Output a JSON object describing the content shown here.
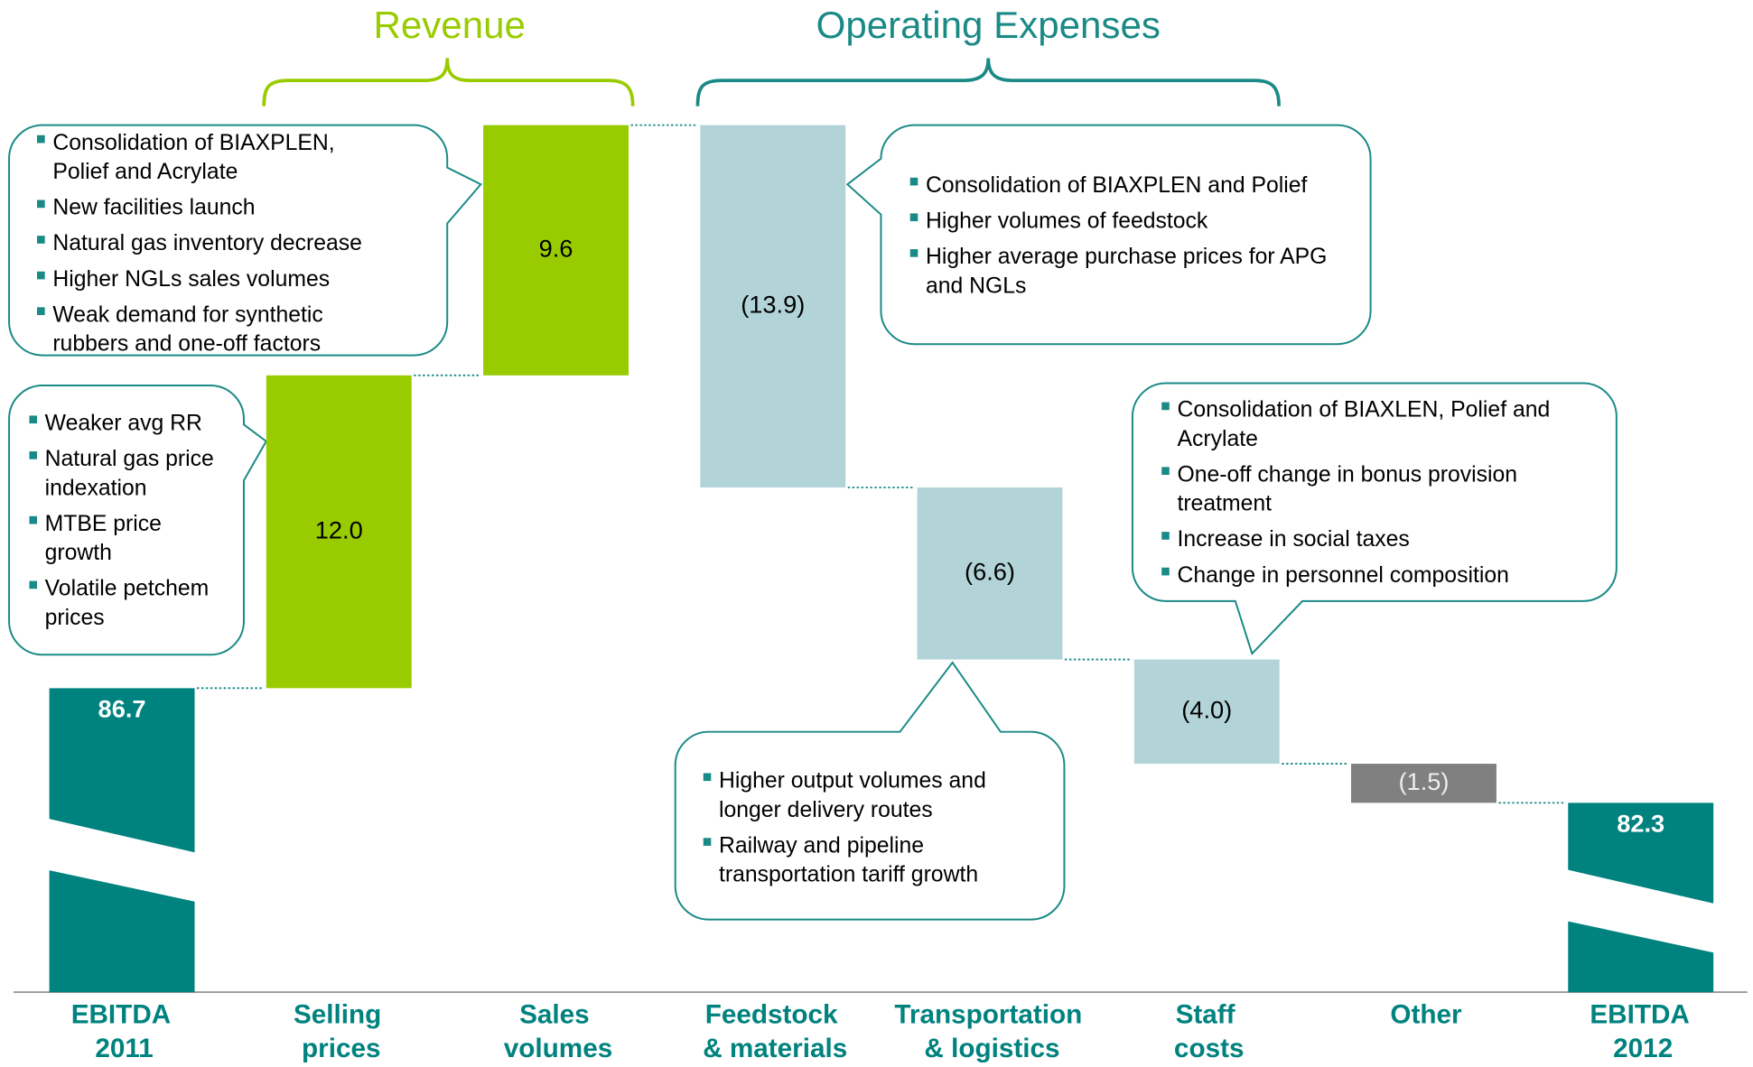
{
  "chart_data": {
    "type": "waterfall",
    "categories": [
      "EBITDA 2011",
      "Selling prices",
      "Sales volumes",
      "Feedstock & materials",
      "Transportation & logistics",
      "Staff costs",
      "Other",
      "EBITDA 2012"
    ],
    "values": [
      86.7,
      12.0,
      9.6,
      -13.9,
      -6.6,
      -4.0,
      -1.5,
      82.3
    ],
    "value_labels": [
      "86.7",
      "12.0",
      "9.6",
      "(13.9)",
      "(6.6)",
      "(4.0)",
      "(1.5)",
      "82.3"
    ],
    "colors": [
      "#00827f",
      "#99cc00",
      "#99cc00",
      "#b2d4d8",
      "#b2d4d8",
      "#b2d4d8",
      "#808080",
      "#00827f"
    ],
    "groups": [
      {
        "label": "Revenue",
        "color": "#99cc00"
      },
      {
        "label": "Operating Expenses",
        "color": "#1a8a86"
      }
    ],
    "callouts": [
      {
        "items": [
          "Consolidation of BIAXPLEN, Polief and Acrylate",
          "New facilities launch",
          "Natural gas inventory decrease",
          "Higher NGLs sales volumes",
          "Weak demand for synthetic rubbers and one-off factors"
        ]
      },
      {
        "items": [
          "Weaker avg RR",
          "Natural gas price indexation",
          "MTBE price growth",
          "Volatile petchem prices"
        ]
      },
      {
        "items": [
          "Consolidation of BIAXPLEN and Polief",
          "Higher volumes of feedstock",
          "Higher average purchase prices for APG and NGLs"
        ]
      },
      {
        "items": [
          "Consolidation of BIAXLEN, Polief and Acrylate",
          "One-off change in bonus provision treatment",
          "Increase in social taxes",
          "Change in personnel composition"
        ]
      },
      {
        "items": [
          "Higher output volumes and longer delivery routes",
          "Railway and pipeline transportation tariff growth"
        ]
      }
    ]
  }
}
